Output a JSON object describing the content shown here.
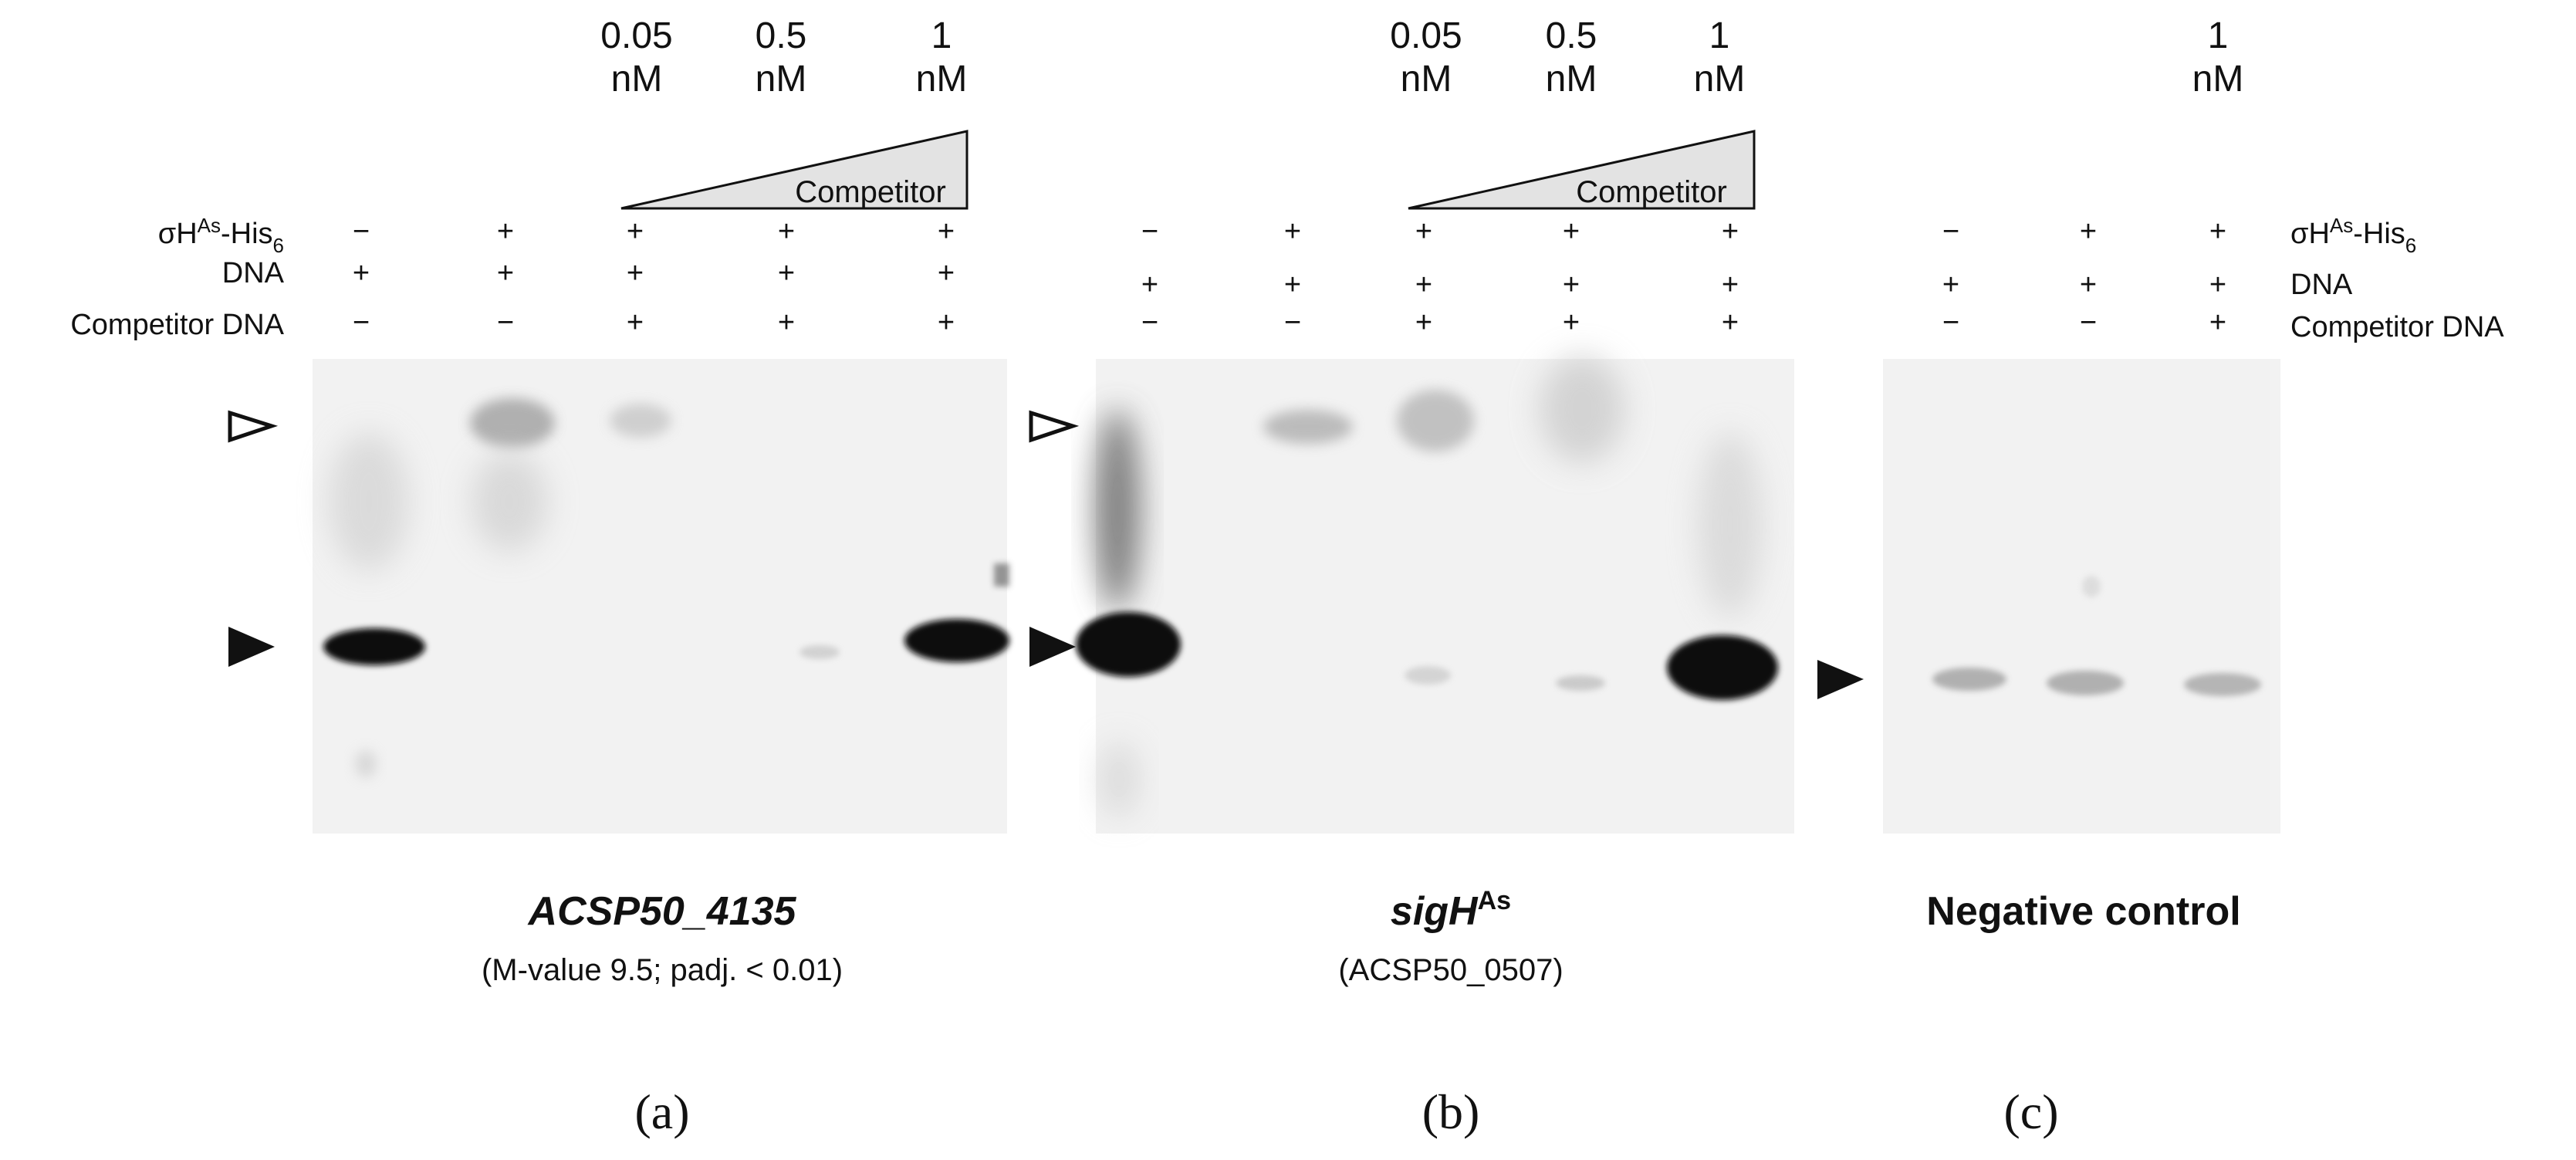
{
  "row_labels": {
    "sigma": "σH",
    "sigma_sup": "As",
    "sigma_tail": "-His",
    "sigma_sub": "6",
    "dna": "DNA",
    "competitor_dna": "Competitor DNA"
  },
  "triangle_label": "Competitor",
  "unit": "nM",
  "panels": [
    {
      "id": "a",
      "label": "(a)",
      "title": "ACSP50_4135",
      "title_italic": true,
      "subtitle": "(M-value 9.5; padj. < 0.01)",
      "concentrations": [
        "0.05",
        "0.5",
        "1"
      ],
      "lanes": [
        {
          "sigma": "−",
          "dna": "+",
          "comp": "−"
        },
        {
          "sigma": "+",
          "dna": "+",
          "comp": "−"
        },
        {
          "sigma": "+",
          "dna": "+",
          "comp": "+"
        },
        {
          "sigma": "+",
          "dna": "+",
          "comp": "+"
        },
        {
          "sigma": "+",
          "dna": "+",
          "comp": "+"
        }
      ]
    },
    {
      "id": "b",
      "label": "(b)",
      "title": "sigH",
      "title_sup": "As",
      "title_italic": true,
      "subtitle": "(ACSP50_0507)",
      "concentrations": [
        "0.05",
        "0.5",
        "1"
      ],
      "lanes": [
        {
          "sigma": "−",
          "dna": "+",
          "comp": "−"
        },
        {
          "sigma": "+",
          "dna": "+",
          "comp": "−"
        },
        {
          "sigma": "+",
          "dna": "+",
          "comp": "+"
        },
        {
          "sigma": "+",
          "dna": "+",
          "comp": "+"
        },
        {
          "sigma": "+",
          "dna": "+",
          "comp": "+"
        }
      ]
    },
    {
      "id": "c",
      "label": "(c)",
      "title": "Negative control",
      "title_italic": false,
      "subtitle": "",
      "concentrations": [
        "1"
      ],
      "lanes": [
        {
          "sigma": "−",
          "dna": "+",
          "comp": "−"
        },
        {
          "sigma": "+",
          "dna": "+",
          "comp": "−"
        },
        {
          "sigma": "+",
          "dna": "+",
          "comp": "+"
        }
      ]
    }
  ],
  "colors": {
    "gel_background": "#f2f2f2",
    "band": "#0a0a0a",
    "triangle_fill": "#e3e3e3"
  }
}
